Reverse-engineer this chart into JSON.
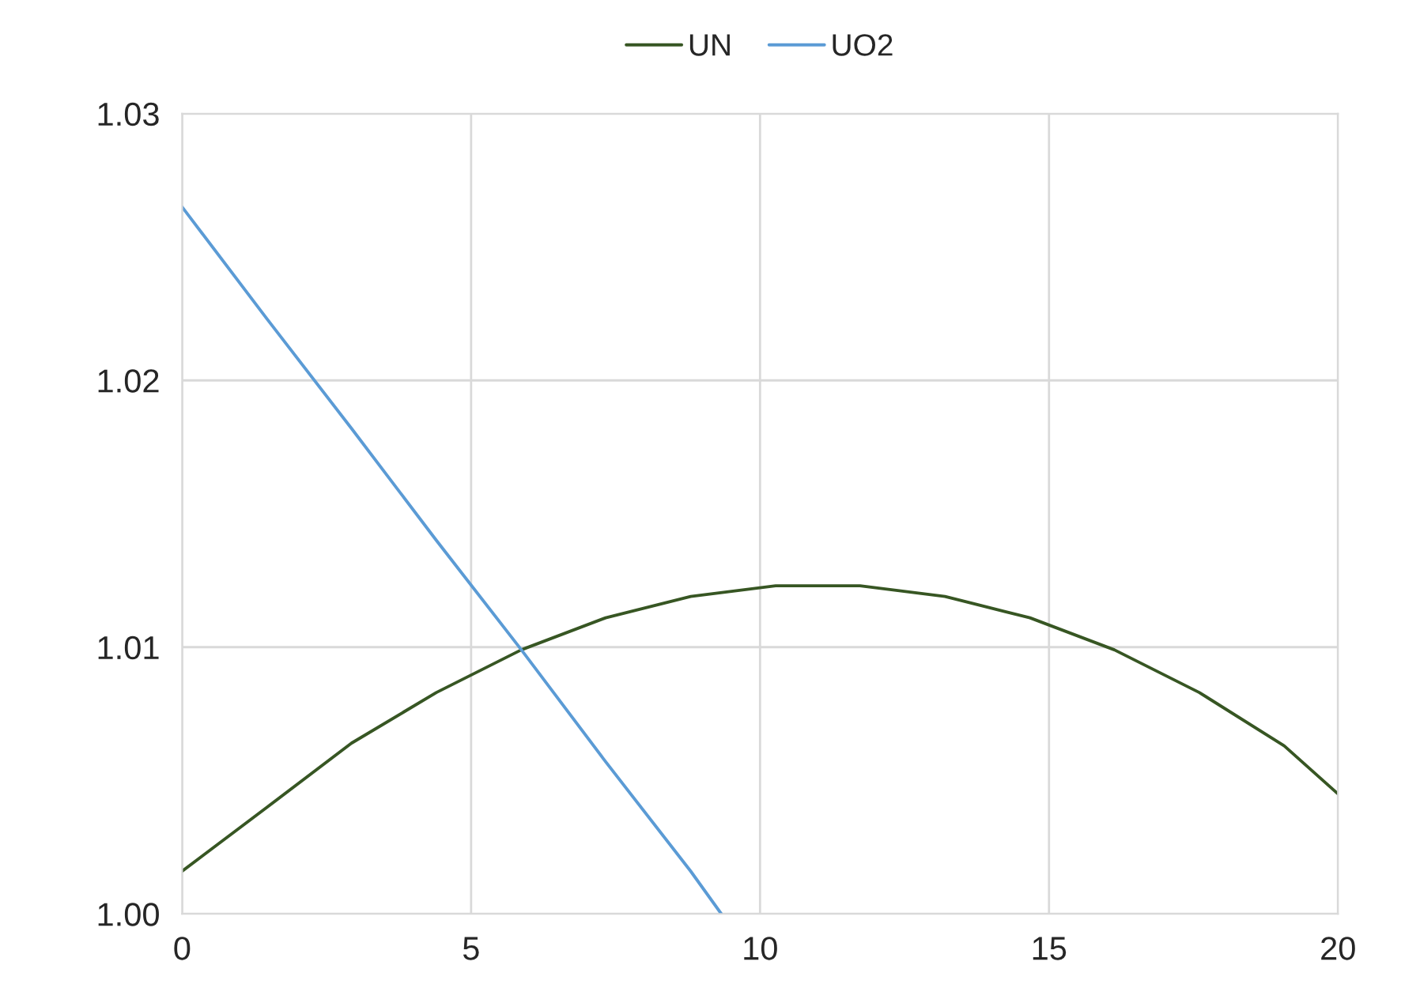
{
  "chart_data": {
    "type": "line",
    "xlim": [
      0,
      20
    ],
    "ylim": [
      1.0,
      1.03
    ],
    "xticks": [
      0,
      5,
      10,
      15,
      20
    ],
    "yticks": [
      {
        "value": 1.0,
        "label": "1.00"
      },
      {
        "value": 1.01,
        "label": "1.01"
      },
      {
        "value": 1.02,
        "label": "1.02"
      },
      {
        "value": 1.03,
        "label": "1.03"
      }
    ],
    "grid": true,
    "legend": "top",
    "series": [
      {
        "name": "UN",
        "color": "#375623",
        "x": [
          0,
          1.47,
          2.93,
          4.4,
          5.87,
          7.33,
          8.8,
          10.27,
          11.73,
          13.2,
          14.67,
          16.13,
          17.6,
          19.07,
          20
        ],
        "values": [
          1.0016,
          1.004,
          1.0064,
          1.0083,
          1.0099,
          1.0111,
          1.0119,
          1.0123,
          1.0123,
          1.0119,
          1.0111,
          1.0099,
          1.0083,
          1.0063,
          1.0045
        ]
      },
      {
        "name": "UO2",
        "color": "#5b9bd5",
        "x": [
          0,
          1.47,
          2.93,
          4.4,
          5.87,
          7.33,
          8.8,
          9.33
        ],
        "values": [
          1.0265,
          1.0223,
          1.0182,
          1.014,
          1.0099,
          1.0057,
          1.0016,
          1.0
        ]
      }
    ]
  }
}
